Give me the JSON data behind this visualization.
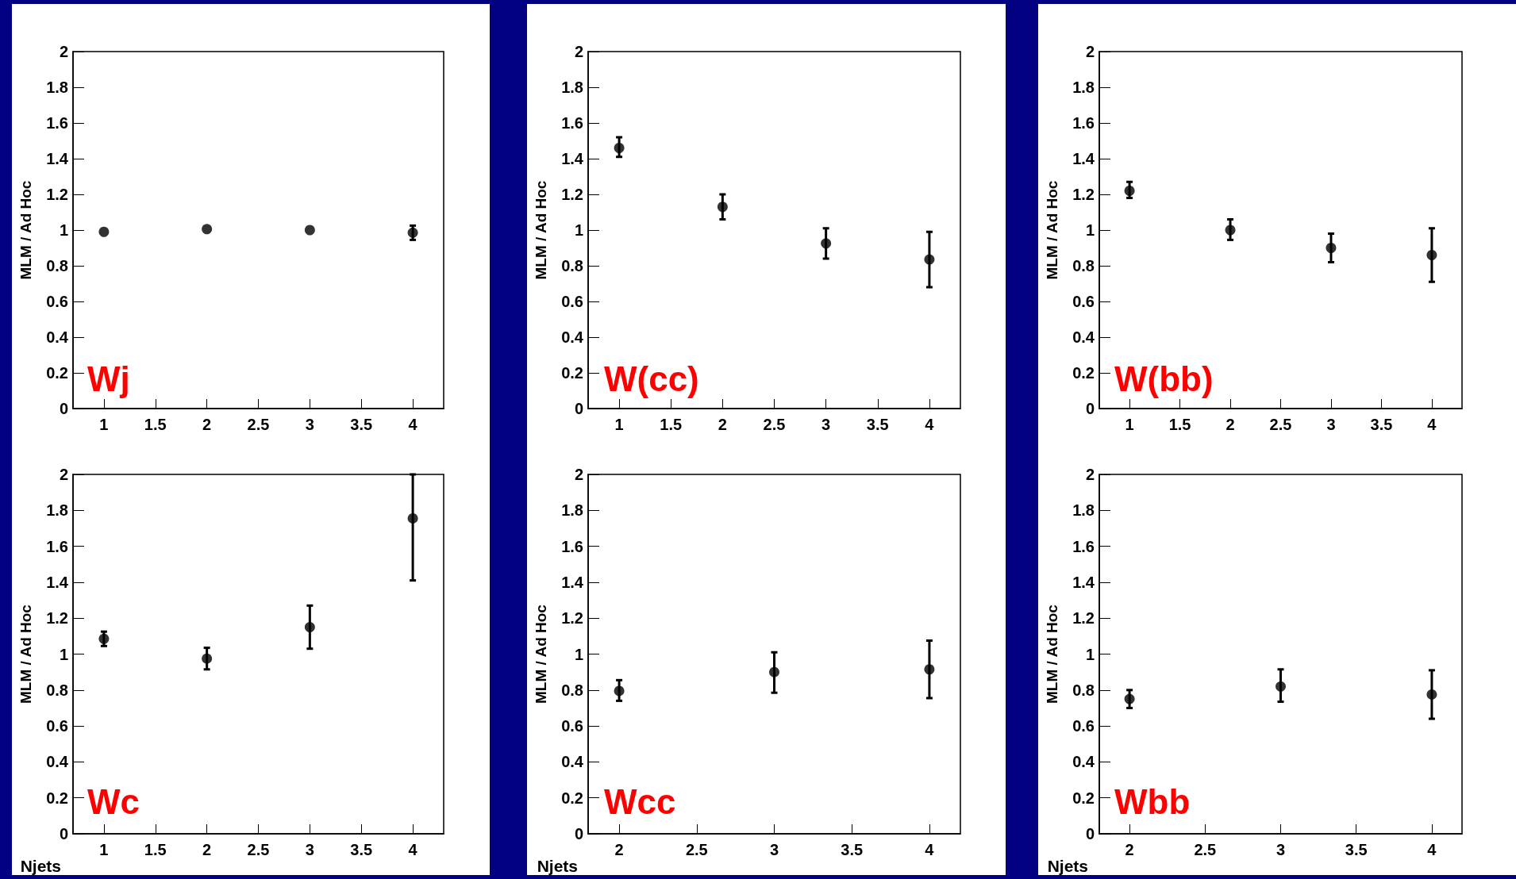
{
  "chart_data": [
    {
      "type": "scatter",
      "title": "Wj",
      "ylabel": "MLM / Ad Hoc",
      "x": [
        1,
        2,
        3,
        4
      ],
      "series": [
        {
          "color": "#000000",
          "values": [
            0.99,
            1.005,
            1.0,
            0.985
          ],
          "errors": [
            null,
            null,
            null,
            [
              0.945,
              1.025
            ]
          ]
        }
      ],
      "xlim": [
        0.7,
        4.3
      ],
      "xticks": [
        1,
        1.5,
        2,
        2.5,
        3,
        3.5,
        4
      ],
      "ylim": [
        0,
        2
      ],
      "yticks": [
        0,
        0.2,
        0.4,
        0.6,
        0.8,
        1,
        1.2,
        1.4,
        1.6,
        1.8,
        2
      ],
      "marker": "circle"
    },
    {
      "type": "scatter",
      "title": "W(cc)",
      "ylabel": "MLM / Ad Hoc",
      "x": [
        1,
        2,
        3,
        4
      ],
      "series": [
        {
          "color": "#000000",
          "values": [
            1.46,
            1.13,
            0.925,
            0.835
          ],
          "errors": [
            [
              1.41,
              1.52
            ],
            [
              1.06,
              1.2
            ],
            [
              0.84,
              1.01
            ],
            [
              0.68,
              0.99
            ]
          ]
        }
      ],
      "xlim": [
        0.7,
        4.3
      ],
      "xticks": [
        1,
        1.5,
        2,
        2.5,
        3,
        3.5,
        4
      ],
      "ylim": [
        0,
        2
      ],
      "yticks": [
        0,
        0.2,
        0.4,
        0.6,
        0.8,
        1,
        1.2,
        1.4,
        1.6,
        1.8,
        2
      ],
      "marker": "circle"
    },
    {
      "type": "scatter",
      "title": "W(bb)",
      "ylabel": "MLM / Ad Hoc",
      "x": [
        1,
        2,
        3,
        4
      ],
      "series": [
        {
          "color": "#000000",
          "values": [
            1.22,
            1.0,
            0.9,
            0.86
          ],
          "errors": [
            [
              1.18,
              1.27
            ],
            [
              0.945,
              1.06
            ],
            [
              0.82,
              0.98
            ],
            [
              0.71,
              1.01
            ]
          ]
        }
      ],
      "xlim": [
        0.7,
        4.3
      ],
      "xticks": [
        1,
        1.5,
        2,
        2.5,
        3,
        3.5,
        4
      ],
      "ylim": [
        0,
        2
      ],
      "yticks": [
        0,
        0.2,
        0.4,
        0.6,
        0.8,
        1,
        1.2,
        1.4,
        1.6,
        1.8,
        2
      ],
      "marker": "circle"
    },
    {
      "type": "scatter",
      "title": "Wc",
      "ylabel": "MLM / Ad Hoc",
      "xlabel": "Njets",
      "x": [
        1,
        2,
        3,
        4
      ],
      "series": [
        {
          "color": "#000000",
          "values": [
            1.085,
            0.975,
            1.15,
            1.755
          ],
          "errors": [
            [
              1.045,
              1.125
            ],
            [
              0.915,
              1.035
            ],
            [
              1.03,
              1.27
            ],
            [
              1.41,
              2.0
            ]
          ]
        }
      ],
      "xlim": [
        0.7,
        4.3
      ],
      "xticks": [
        1,
        1.5,
        2,
        2.5,
        3,
        3.5,
        4
      ],
      "ylim": [
        0,
        2
      ],
      "yticks": [
        0,
        0.2,
        0.4,
        0.6,
        0.8,
        1,
        1.2,
        1.4,
        1.6,
        1.8,
        2
      ],
      "marker": "circle"
    },
    {
      "type": "scatter",
      "title": "Wcc",
      "ylabel": "MLM / Ad Hoc",
      "xlabel": "Njets",
      "x": [
        2,
        3,
        4
      ],
      "series": [
        {
          "color": "#000000",
          "values": [
            0.795,
            0.9,
            0.915
          ],
          "errors": [
            [
              0.74,
              0.855
            ],
            [
              0.785,
              1.01
            ],
            [
              0.755,
              1.075
            ]
          ]
        }
      ],
      "xlim": [
        1.8,
        4.2
      ],
      "xticks": [
        2,
        2.5,
        3,
        3.5,
        4
      ],
      "ylim": [
        0,
        2
      ],
      "yticks": [
        0,
        0.2,
        0.4,
        0.6,
        0.8,
        1,
        1.2,
        1.4,
        1.6,
        1.8,
        2
      ],
      "marker": "circle"
    },
    {
      "type": "scatter",
      "title": "Wbb",
      "ylabel": "MLM / Ad Hoc",
      "xlabel": "Njets",
      "x": [
        2,
        3,
        4
      ],
      "series": [
        {
          "color": "#000000",
          "values": [
            0.75,
            0.82,
            0.775
          ],
          "errors": [
            [
              0.7,
              0.8
            ],
            [
              0.735,
              0.915
            ],
            [
              0.64,
              0.91
            ]
          ]
        }
      ],
      "xlim": [
        1.8,
        4.2
      ],
      "xticks": [
        2,
        2.5,
        3,
        3.5,
        4
      ],
      "ylim": [
        0,
        2
      ],
      "yticks": [
        0,
        0.2,
        0.4,
        0.6,
        0.8,
        1,
        1.2,
        1.4,
        1.6,
        1.8,
        2
      ],
      "marker": "circle"
    }
  ]
}
